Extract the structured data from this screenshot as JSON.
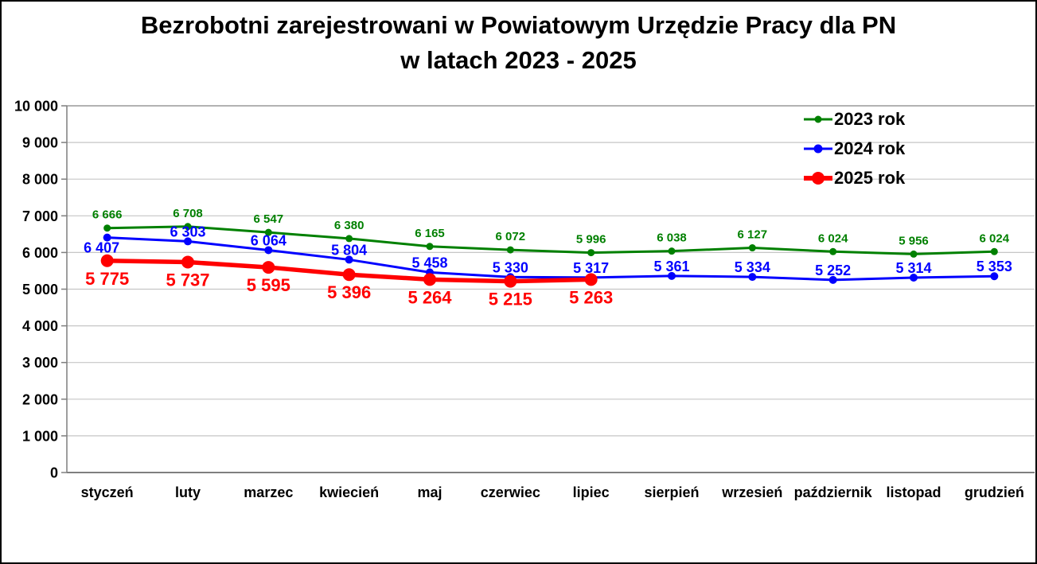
{
  "chart_data": {
    "type": "line",
    "title": "Bezrobotni zarejestrowani w Powiatowym Urzędzie Pracy dla PN",
    "title_line2": "w latach 2023 - 2025",
    "categories": [
      "styczeń",
      "luty",
      "marzec",
      "kwiecień",
      "maj",
      "czerwiec",
      "lipiec",
      "sierpień",
      "wrzesień",
      "październik",
      "listopad",
      "grudzień"
    ],
    "series": [
      {
        "name": "2023 rok",
        "color": "#008000",
        "values": [
          6666,
          6708,
          6547,
          6380,
          6165,
          6072,
          5996,
          6038,
          6127,
          6024,
          5956,
          6024
        ]
      },
      {
        "name": "2024 rok",
        "color": "#0000FF",
        "values": [
          6407,
          6303,
          6064,
          5804,
          5458,
          5330,
          5317,
          5361,
          5334,
          5252,
          5314,
          5353
        ]
      },
      {
        "name": "2025 rok",
        "color": "#FF0000",
        "values": [
          5775,
          5737,
          5595,
          5396,
          5264,
          5215,
          5263
        ]
      }
    ],
    "ylim": [
      0,
      10000
    ],
    "ytick_step": 1000,
    "ytick_labels": [
      "0",
      "1 000",
      "2 000",
      "3 000",
      "4 000",
      "5 000",
      "6 000",
      "7 000",
      "8 000",
      "9 000",
      "10 000"
    ],
    "grid": true,
    "legend_position": "top-right",
    "axis_color": "#7F7F7F",
    "gridline_color": "#C6C6C6"
  }
}
